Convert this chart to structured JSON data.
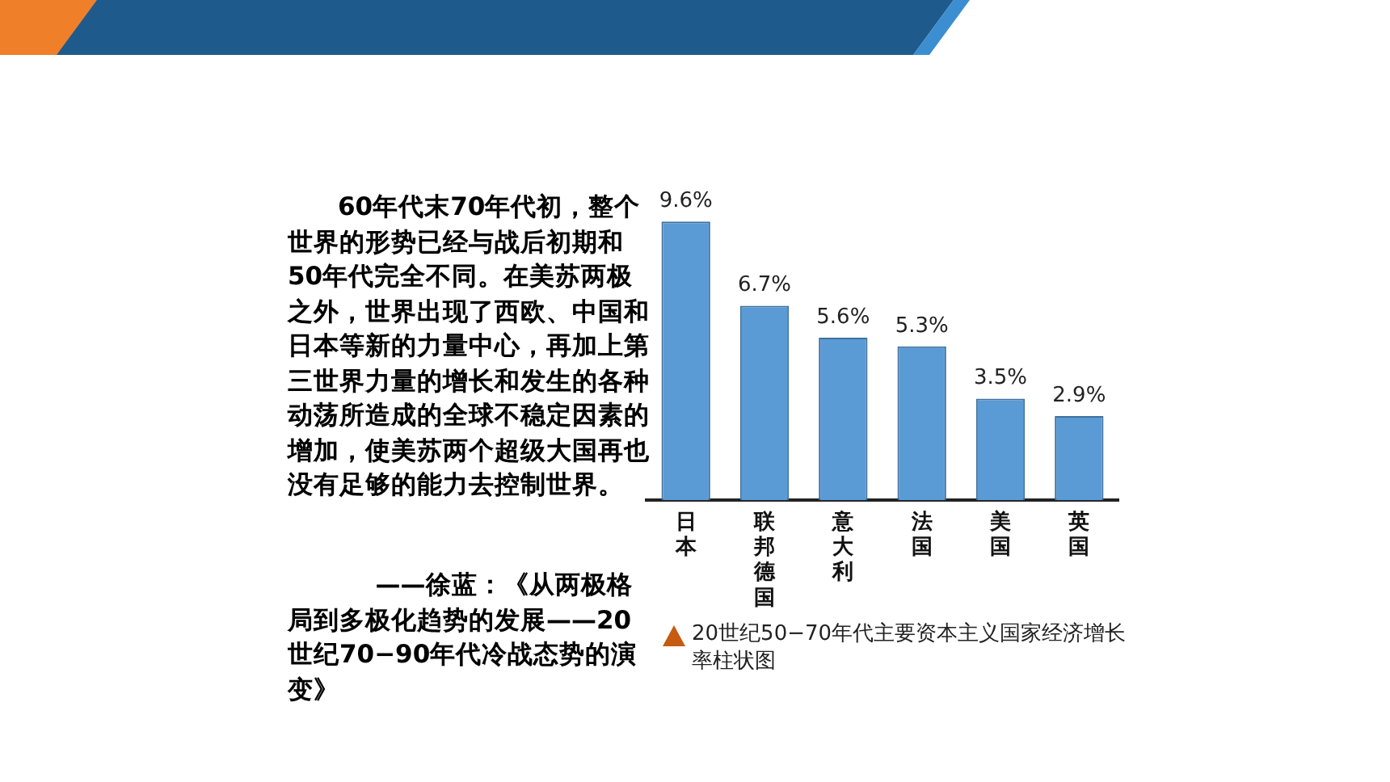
{
  "chart_data": {
    "type": "bar",
    "categories": [
      "日本",
      "联邦德国",
      "意大利",
      "法国",
      "美国",
      "英国"
    ],
    "values": [
      9.6,
      6.7,
      5.6,
      5.3,
      3.5,
      2.9
    ],
    "color": "#5b9bd5",
    "value_labels": [
      "9.6%",
      "6.7%",
      "5.6%",
      "5.3%",
      "3.5%",
      "2.9%"
    ],
    "grid": false,
    "legend": false,
    "annotations": [
      "60年代末70年代初，整个世界的形势已经与战后初期和50年代完全不同。在美苏两极之外，世界出现了西欧、中国和日本等新的力量中心，再加上第三世界力量的增长和发生的各种动荡所造成的全球不稳定因素的增加，使美苏两个超级大国再也没有足够的能力去控制世界。",
      "——徐蓝：《从两极格局到多极化趋势的发展——20世纪70−90年代冷战态势的演变》",
      "20世纪50−70年代主要资本主义国家经济增长率柱状图"
    ]
  }
}
